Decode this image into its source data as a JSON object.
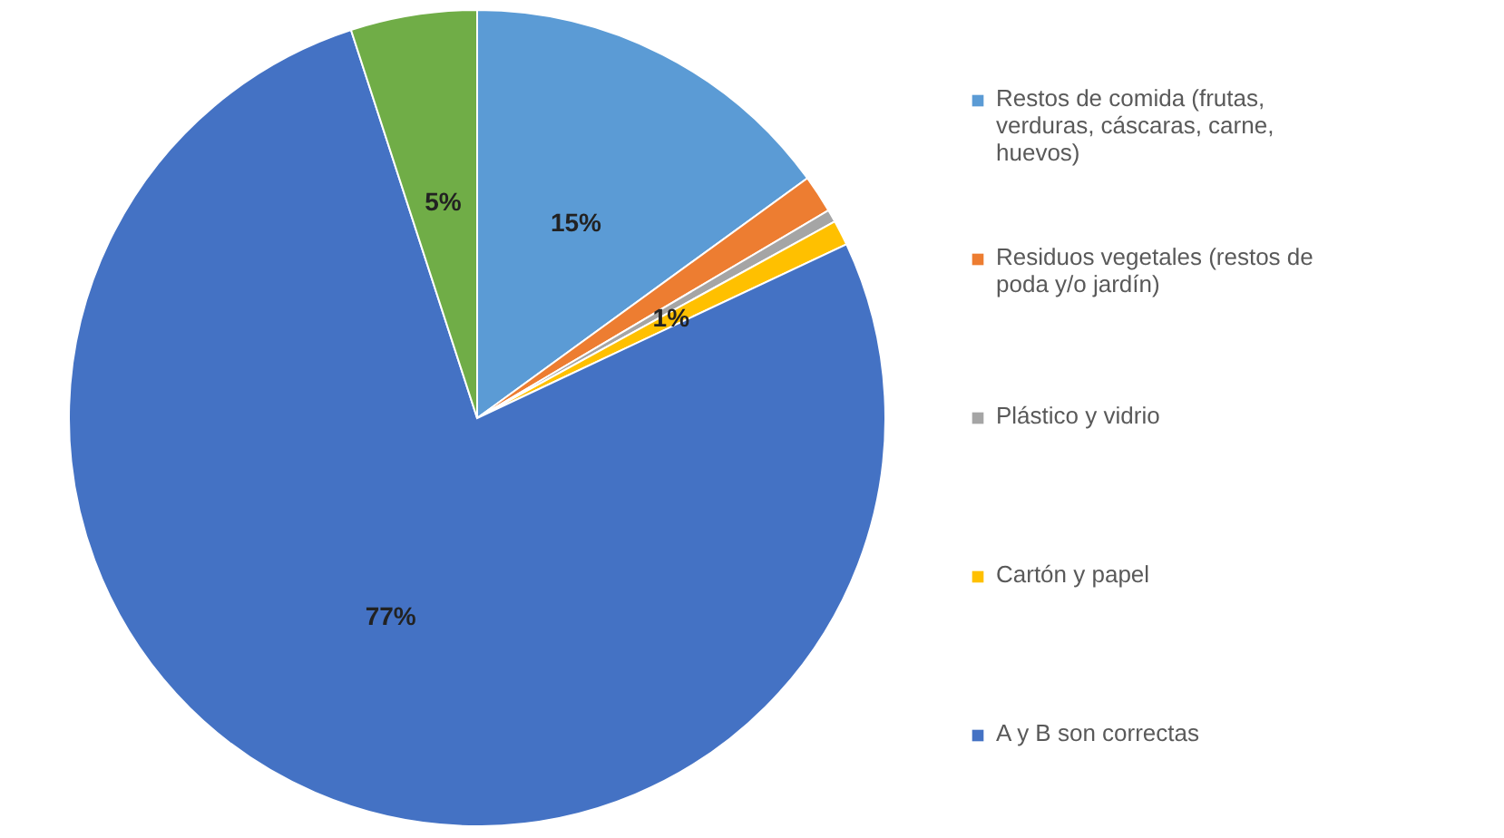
{
  "chart_data": {
    "type": "pie",
    "categories": [
      "Restos de comida (frutas, verduras,  cáscaras, carne, huevos)",
      "Residuos vegetales (restos de poda y/o jardín)",
      "Plástico y vidrio",
      "Cartón y papel",
      "A y B son correctas",
      null
    ],
    "values": [
      15,
      1.5,
      0.5,
      1,
      77,
      5
    ],
    "colors": [
      "#5b9bd5",
      "#ed7d31",
      "#a5a5a5",
      "#ffc000",
      "#4472c4",
      "#70ad47"
    ],
    "value_labels": [
      "15%",
      null,
      null,
      "1%",
      "77%",
      "5%"
    ],
    "legend": "right"
  }
}
